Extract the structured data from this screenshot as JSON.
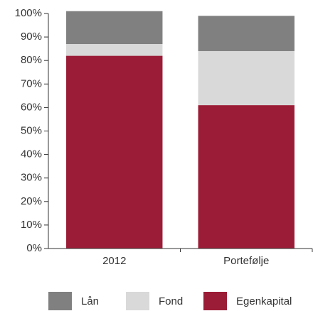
{
  "chart_data": {
    "type": "stacked_bar",
    "categories": [
      "2012",
      "Portefølje"
    ],
    "series": [
      {
        "name": "Egenkapital",
        "color": "#9b1c36",
        "values": [
          82,
          61
        ]
      },
      {
        "name": "Fond",
        "color": "#d9d9d9",
        "values": [
          5,
          23
        ]
      },
      {
        "name": "Lån",
        "color": "#808080",
        "values": [
          14,
          15
        ]
      }
    ],
    "ylim": [
      0,
      100
    ],
    "yticks": [
      {
        "value": 0,
        "label": "0%"
      },
      {
        "value": 10,
        "label": "10%"
      },
      {
        "value": 20,
        "label": "20%"
      },
      {
        "value": 30,
        "label": "30%"
      },
      {
        "value": 40,
        "label": "40%"
      },
      {
        "value": 50,
        "label": "50%"
      },
      {
        "value": 60,
        "label": "60%"
      },
      {
        "value": 70,
        "label": "70%"
      },
      {
        "value": 80,
        "label": "80%"
      },
      {
        "value": 90,
        "label": "90%"
      },
      {
        "value": 100,
        "label": "100%"
      }
    ],
    "legend": "bottom"
  }
}
